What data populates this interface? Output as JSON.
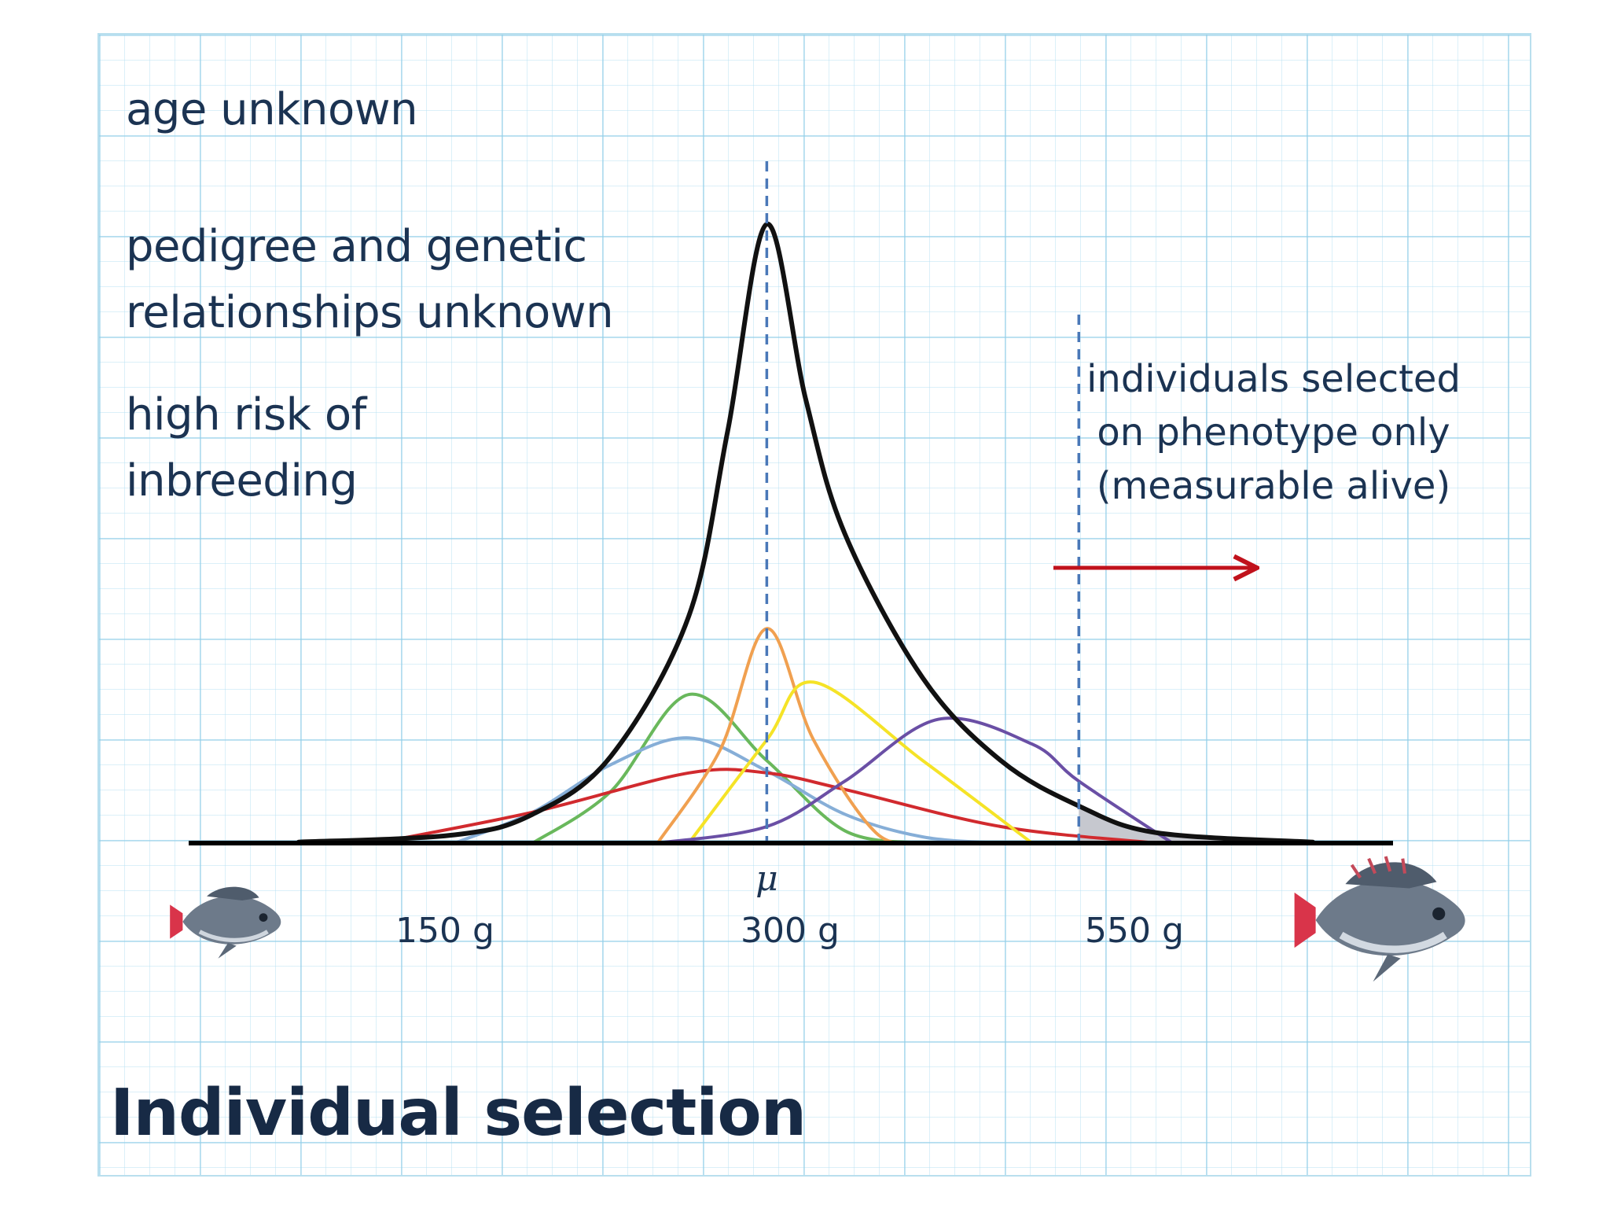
{
  "title": "Individual selection",
  "notes": {
    "age": "age unknown",
    "pedigree": [
      "pedigree and genetic",
      "relationships unknown"
    ],
    "inbreeding": [
      "high risk of",
      "inbreeding"
    ]
  },
  "selection_note": [
    "individuals selected",
    "on phenotype only",
    "(measurable alive)"
  ],
  "mean_symbol": "μ",
  "icons": {
    "small_fish": "small-tilapia-fish-icon",
    "large_fish": "large-tilapia-fish-icon",
    "selection_arrow": "arrow-right-icon"
  },
  "colors": {
    "text": "#1b3352",
    "grid": "#92cee8",
    "overall_curve": "#111111",
    "dashed_lines": "#4a78b8",
    "arrow": "#c0121c",
    "selected_area": "#c6c8cf"
  },
  "chart_data": {
    "type": "line",
    "x_ticks": [
      "150 g",
      "300 g",
      "550 g"
    ],
    "x_tick_values": [
      150,
      300,
      550
    ],
    "mean_line_at": 300,
    "truncation_point": 500,
    "series": [
      {
        "color": "#111111",
        "role": "overall",
        "x": [
          0,
          100,
          150,
          200,
          250,
          275,
          300,
          325,
          350,
          400,
          450,
          500,
          550,
          650
        ],
        "y": [
          0.5,
          4,
          14,
          42,
          110,
          200,
          300,
          215,
          150,
          80,
          40,
          18,
          5,
          0.5
        ]
      },
      {
        "color": "#69b85c",
        "x": [
          150,
          200,
          250,
          300,
          350,
          400
        ],
        "y": [
          0,
          25,
          72,
          40,
          6,
          0
        ]
      },
      {
        "color": "#86aed7",
        "x": [
          100,
          150,
          200,
          250,
          300,
          350,
          400,
          450
        ],
        "y": [
          0,
          15,
          38,
          51,
          35,
          14,
          3,
          0
        ]
      },
      {
        "color": "#d12a2e",
        "x": [
          50,
          150,
          250,
          300,
          350,
          450,
          550
        ],
        "y": [
          0,
          15,
          34,
          34,
          26,
          8,
          0
        ]
      },
      {
        "color": "#f0a050",
        "x": [
          230,
          270,
          300,
          330,
          370,
          400
        ],
        "y": [
          0,
          45,
          104,
          50,
          5,
          0
        ]
      },
      {
        "color": "#f5e327",
        "x": [
          250,
          300,
          330,
          400,
          470
        ],
        "y": [
          0,
          50,
          78,
          40,
          0
        ]
      },
      {
        "color": "#6a4fa5",
        "x": [
          230,
          300,
          350,
          410,
          470,
          500,
          560
        ],
        "y": [
          0,
          8,
          30,
          60,
          48,
          30,
          0
        ]
      }
    ]
  }
}
